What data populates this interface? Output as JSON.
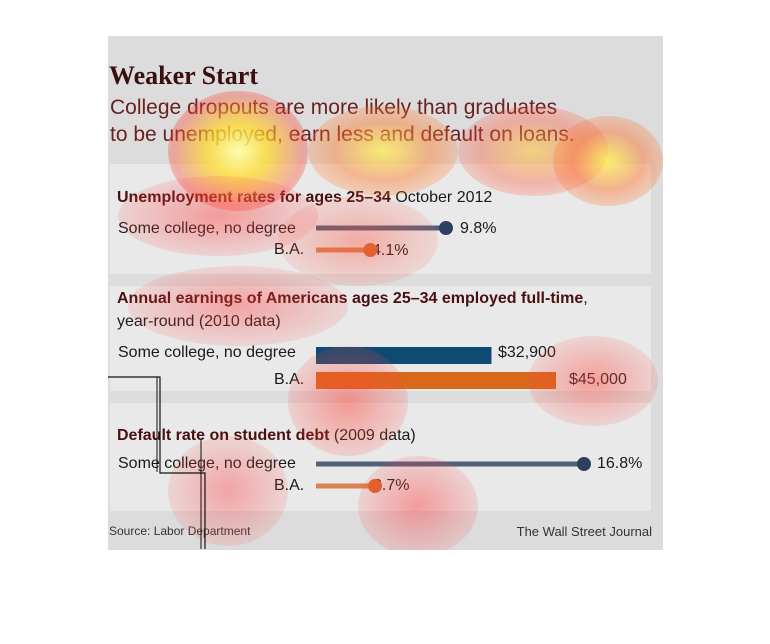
{
  "title": "Weaker Start",
  "subtitle_line1": "College dropouts are more likely than graduates",
  "subtitle_line2": "to be unemployed, earn less and default on loans.",
  "source": "Source: Labor Department",
  "credit": "The Wall Street Journal",
  "colors": {
    "dark_series": "#2e3f5f",
    "light_series": "#d9682a",
    "bar_dark": "#0f4a73",
    "bar_light": "#d8691b",
    "title_red": "#4a0f10"
  },
  "chart_data": [
    {
      "type": "bar",
      "title": "Unemployment rates for ages 25–34",
      "title_suffix": "October 2012",
      "categories": [
        "Some college, no degree",
        "B.A."
      ],
      "values": [
        9.8,
        4.1
      ],
      "labels": [
        "9.8%",
        "4.1%"
      ],
      "unit": "%"
    },
    {
      "type": "bar",
      "title": "Annual earnings of Americans ages 25–34 employed full-time",
      "title_suffix": ",",
      "title_line2": "year-round (2010 data)",
      "categories": [
        "Some college, no degree",
        "B.A."
      ],
      "values": [
        32900,
        45000
      ],
      "labels": [
        "$32,900",
        "$45,000"
      ],
      "unit": "$"
    },
    {
      "type": "bar",
      "title": "Default rate on student debt",
      "title_suffix": "(2009 data)",
      "categories": [
        "Some college, no degree",
        "B.A."
      ],
      "values": [
        16.8,
        3.7
      ],
      "labels": [
        "16.8%",
        "3.7%"
      ],
      "unit": "%"
    }
  ]
}
